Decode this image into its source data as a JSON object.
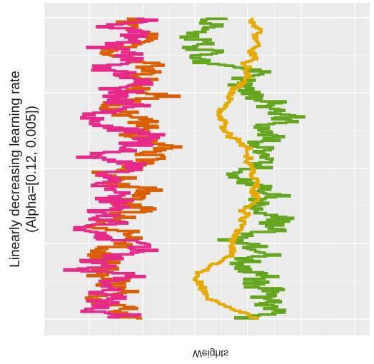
{
  "chart_data": {
    "type": "line",
    "orientation": "rotated",
    "title": "",
    "ylabel_lines": [
      "Linearly decreasing learning rate",
      "(Alpha=[0.12, 0.005])"
    ],
    "xlabel": "Weights",
    "xlabel_mirrored": true,
    "grid": true,
    "legend": "none",
    "background": "#ebebeb",
    "grid_color": "#ffffff",
    "x_range": [
      0,
      1
    ],
    "t_range": [
      0,
      1
    ],
    "series": [
      {
        "color": "#d95f02",
        "noise": 0.11,
        "seed": 11,
        "trend": [
          [
            0.0,
            0.3
          ],
          [
            0.12,
            0.27
          ],
          [
            0.25,
            0.25
          ],
          [
            0.35,
            0.26
          ],
          [
            0.5,
            0.22
          ],
          [
            0.62,
            0.21
          ],
          [
            0.72,
            0.18
          ],
          [
            0.85,
            0.12
          ],
          [
            0.95,
            0.14
          ],
          [
            1.0,
            0.17
          ]
        ]
      },
      {
        "color": "#e7298a",
        "noise": 0.12,
        "seed": 23,
        "trend": [
          [
            0.0,
            0.3
          ],
          [
            0.1,
            0.29
          ],
          [
            0.22,
            0.24
          ],
          [
            0.33,
            0.24
          ],
          [
            0.48,
            0.22
          ],
          [
            0.6,
            0.2
          ],
          [
            0.72,
            0.18
          ],
          [
            0.86,
            0.16
          ],
          [
            0.94,
            0.08
          ],
          [
            1.0,
            0.22
          ]
        ]
      },
      {
        "color": "#66a61e",
        "noise": 0.1,
        "seed": 37,
        "trend": [
          [
            0.0,
            0.58
          ],
          [
            0.08,
            0.55
          ],
          [
            0.18,
            0.6
          ],
          [
            0.28,
            0.72
          ],
          [
            0.38,
            0.7
          ],
          [
            0.48,
            0.63
          ],
          [
            0.6,
            0.68
          ],
          [
            0.72,
            0.66
          ],
          [
            0.84,
            0.7
          ],
          [
            0.94,
            0.76
          ],
          [
            1.0,
            0.64
          ]
        ]
      },
      {
        "color": "#e6ab02",
        "noise": 0.025,
        "seed": 51,
        "trend": [
          [
            0.0,
            0.65
          ],
          [
            0.1,
            0.67
          ],
          [
            0.18,
            0.62
          ],
          [
            0.32,
            0.54
          ],
          [
            0.45,
            0.64
          ],
          [
            0.58,
            0.66
          ],
          [
            0.68,
            0.63
          ],
          [
            0.78,
            0.57
          ],
          [
            0.86,
            0.47
          ],
          [
            0.93,
            0.5
          ],
          [
            1.0,
            0.65
          ]
        ]
      }
    ]
  }
}
